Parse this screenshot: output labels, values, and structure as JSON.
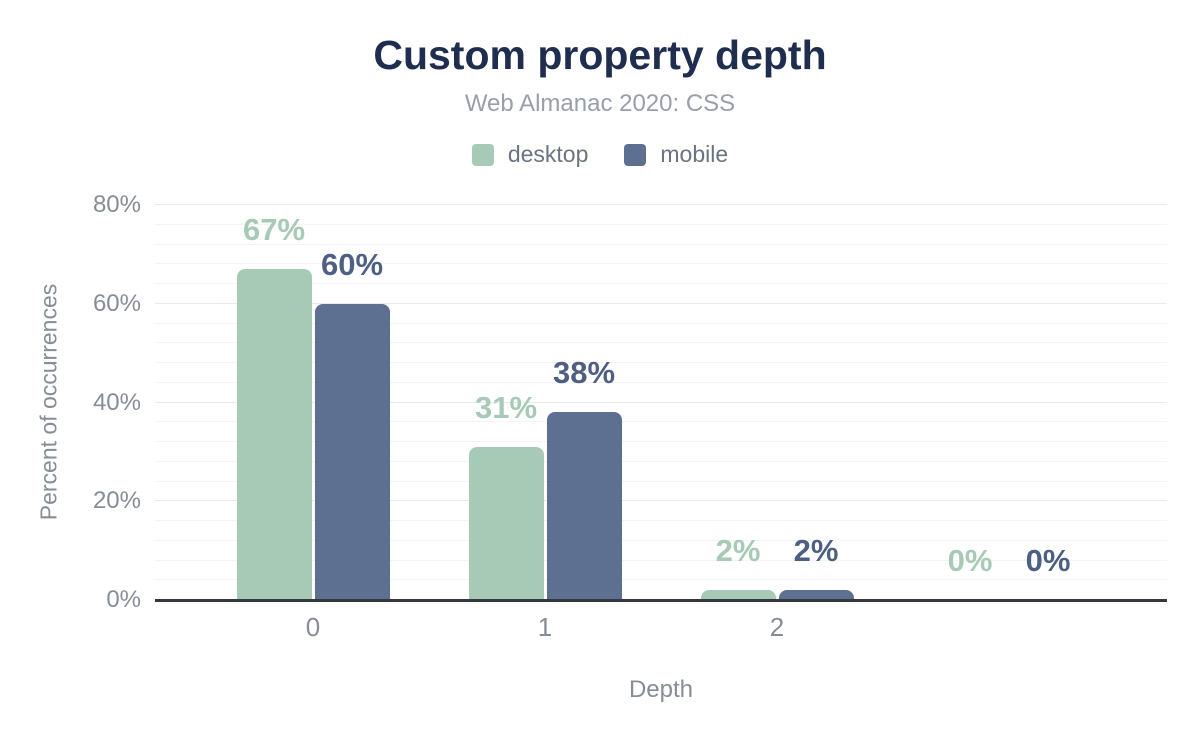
{
  "chart_data": {
    "type": "bar",
    "title": "Custom property depth",
    "subtitle": "Web Almanac 2020: CSS",
    "xlabel": "Depth",
    "ylabel": "Percent of occurrences",
    "categories": [
      "0",
      "1",
      "2",
      ""
    ],
    "series": [
      {
        "name": "desktop",
        "color": "#a6cab6",
        "label_color": "#a6cab6",
        "values": [
          67,
          31,
          2,
          0
        ]
      },
      {
        "name": "mobile",
        "color": "#5d7092",
        "label_color": "#4e5f84",
        "values": [
          60,
          38,
          2,
          0
        ]
      }
    ],
    "value_label_format": "{v}%",
    "ylim": [
      0,
      80
    ],
    "y_tick_step": 20,
    "y_minor_step": 4,
    "y_tick_format": "{v}%",
    "grid": true,
    "legend_position": "top",
    "colors": {
      "background": "#ffffff",
      "title": "#1f2d4f",
      "subtitle": "#989fa9",
      "legend_text": "#6b737f",
      "axis_text": "#878d96",
      "axis_line": "#34383d",
      "grid_minor": "#f4f4f6",
      "grid_major": "#e9eaed"
    }
  }
}
